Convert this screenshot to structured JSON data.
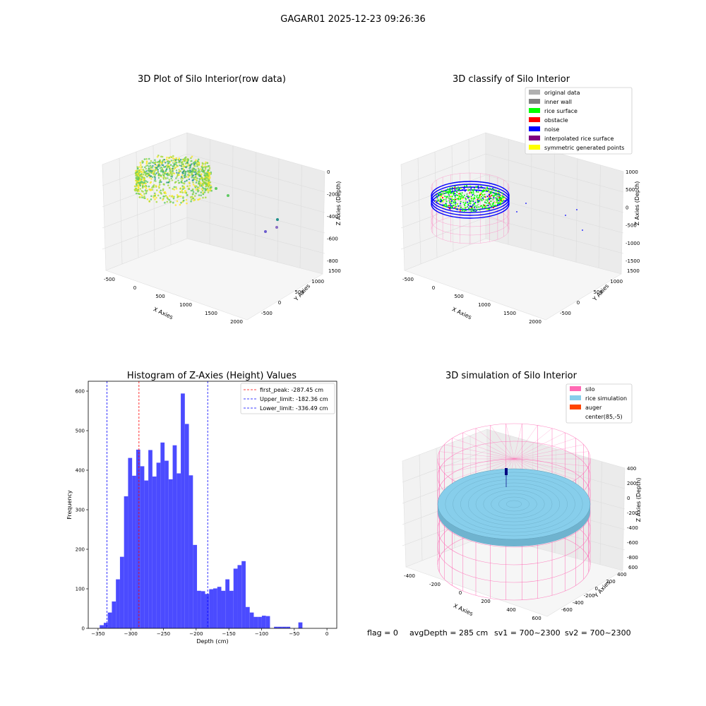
{
  "suptitle": "GAGAR01 2025-12-23 09:26:36",
  "footer": {
    "flag": "flag = 0",
    "avg": "avgDepth = 285 cm",
    "sv1": "sv1 = 700~2300",
    "sv2": "sv2 = 700~2300"
  },
  "colors": {
    "hist_bar": "#4b4bff",
    "first_peak": "#ff0000",
    "limit": "#0000ff",
    "silo": "#ff69b4",
    "rice": "#87ceeb",
    "auger": "#ff4500",
    "rice_surface": "#00ff00",
    "noise": "#0000ff",
    "inner_wall": "#808080",
    "original": "#b0b0b0",
    "obstacle": "#ff0000",
    "interp": "#800080",
    "symmetric": "#ffff00"
  },
  "chart_data": [
    {
      "type": "scatter3d",
      "title": "3D Plot of Silo Interior(row data)",
      "xlabel": "X Axies",
      "ylabel": "Y Axies",
      "zlabel": "Z Axies (Depth)",
      "xticks": [
        "-500",
        "0",
        "500",
        "1000",
        "1500",
        "2000"
      ],
      "yticks": [
        "-500",
        "0",
        "500",
        "1000",
        "1500"
      ],
      "zticks": [
        "0",
        "-200",
        "-400",
        "-600",
        "-800"
      ],
      "colormap": "viridis"
    },
    {
      "type": "scatter3d",
      "title": "3D classify of Silo Interior",
      "xlabel": "X Axies",
      "ylabel": "Y Axies",
      "zlabel": "Z Axies (Depth)",
      "xticks": [
        "-500",
        "0",
        "500",
        "1000",
        "1500",
        "2000"
      ],
      "yticks": [
        "-500",
        "0",
        "500",
        "1000",
        "1500"
      ],
      "zticks": [
        "1000",
        "500",
        "0",
        "-500",
        "-1000",
        "-1500"
      ],
      "legend": {
        "position": "top-right",
        "items": [
          {
            "label": "original data",
            "color": "#b0b0b0"
          },
          {
            "label": "inner wall",
            "color": "#808080"
          },
          {
            "label": "rice surface",
            "color": "#00ff00"
          },
          {
            "label": "obstacle",
            "color": "#ff0000"
          },
          {
            "label": "noise",
            "color": "#0000ff"
          },
          {
            "label": "interpolated rice surface",
            "color": "#800080"
          },
          {
            "label": "symmetric generated points",
            "color": "#ffff00"
          }
        ]
      }
    },
    {
      "type": "bar",
      "title": "Histogram of Z-Axies (Height) Values",
      "xlabel": "Depth (cm)",
      "ylabel": "Frequency",
      "xlim": [
        -365,
        15
      ],
      "ylim": [
        0,
        625
      ],
      "xticks": [
        -350,
        -300,
        -250,
        -200,
        -150,
        -100,
        -50,
        0
      ],
      "yticks": [
        0,
        100,
        200,
        300,
        400,
        500,
        600
      ],
      "bin_width": 6.2,
      "bin_start": -347.5,
      "values": [
        8,
        14,
        40,
        68,
        124,
        181,
        334,
        431,
        386,
        452,
        410,
        374,
        451,
        384,
        419,
        470,
        424,
        377,
        463,
        392,
        594,
        517,
        387,
        211,
        95,
        94,
        87,
        99,
        101,
        105,
        95,
        124,
        95,
        151,
        160,
        170,
        54,
        40,
        29,
        29,
        32,
        31,
        0,
        4,
        4,
        4,
        4,
        0,
        0,
        15
      ],
      "lines": [
        {
          "label": "first_peak: -287.45 cm",
          "value": -287.45,
          "color": "#ff0000"
        },
        {
          "label": "Upper_limit: -182.36 cm",
          "value": -182.36,
          "color": "#0000ff"
        },
        {
          "label": "Lower_limit: -336.49 cm",
          "value": -336.49,
          "color": "#0000ff"
        }
      ],
      "legend": {
        "position": "top-right"
      }
    },
    {
      "type": "surface3d",
      "title": "3D simulation of Silo Interior",
      "xlabel": "X Axies",
      "ylabel": "Y Axies",
      "zlabel": "Z Axies (Depth)",
      "xticks": [
        "-400",
        "-200",
        "0",
        "200",
        "400",
        "600"
      ],
      "yticks": [
        "-600",
        "-400",
        "-200",
        "0",
        "200",
        "400",
        "600"
      ],
      "zticks": [
        "400",
        "200",
        "0",
        "-200",
        "-400",
        "-600",
        "-800"
      ],
      "legend": {
        "position": "top-right",
        "items": [
          {
            "label": "silo",
            "color": "#ff69b4"
          },
          {
            "label": "rice simulation",
            "color": "#87ceeb"
          },
          {
            "label": "auger",
            "color": "#ff4500"
          },
          {
            "label": "center(85,-5)",
            "color": ""
          }
        ]
      }
    }
  ]
}
